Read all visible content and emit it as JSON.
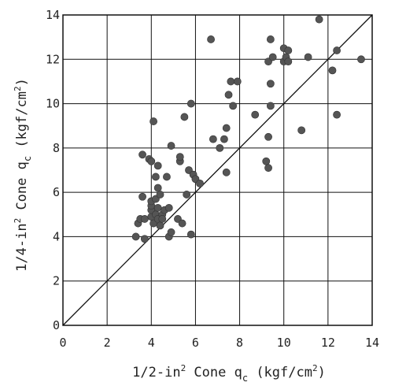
{
  "chart_data": {
    "type": "scatter",
    "title": "",
    "xlabel": {
      "prefix": "1/2-in",
      "sup1": "2",
      "mid": " Cone q",
      "sub": "c",
      "unit_open": " (kgf/cm",
      "sup2": "2",
      "unit_close": ")"
    },
    "ylabel": {
      "prefix": "1/4-in",
      "sup1": "2",
      "mid": " Cone q",
      "sub": "c",
      "unit_open": " (kgf/cm",
      "sup2": "2",
      "unit_close": ")"
    },
    "xlim": [
      0,
      14
    ],
    "ylim": [
      0,
      14
    ],
    "xticks": [
      0,
      2,
      4,
      6,
      8,
      10,
      12,
      14
    ],
    "yticks": [
      0,
      2,
      4,
      6,
      8,
      10,
      12,
      14
    ],
    "grid": true,
    "reference_line": {
      "x": [
        0,
        14
      ],
      "y": [
        0,
        14
      ]
    },
    "marker_color": "#555555",
    "points": [
      [
        3.3,
        4.0
      ],
      [
        3.4,
        4.6
      ],
      [
        3.5,
        4.8
      ],
      [
        3.6,
        5.8
      ],
      [
        3.6,
        7.7
      ],
      [
        3.7,
        3.9
      ],
      [
        3.7,
        4.8
      ],
      [
        3.9,
        7.5
      ],
      [
        4.0,
        4.9
      ],
      [
        4.0,
        5.2
      ],
      [
        4.0,
        5.4
      ],
      [
        4.0,
        5.6
      ],
      [
        4.0,
        7.4
      ],
      [
        4.1,
        9.2
      ],
      [
        4.1,
        4.6
      ],
      [
        4.2,
        5.0
      ],
      [
        4.2,
        5.7
      ],
      [
        4.2,
        6.7
      ],
      [
        4.3,
        5.3
      ],
      [
        4.3,
        4.8
      ],
      [
        4.3,
        7.2
      ],
      [
        4.3,
        6.2
      ],
      [
        4.4,
        5.9
      ],
      [
        4.4,
        4.5
      ],
      [
        4.5,
        5.0
      ],
      [
        4.5,
        4.8
      ],
      [
        4.6,
        5.2
      ],
      [
        4.7,
        6.7
      ],
      [
        4.8,
        4.0
      ],
      [
        4.8,
        5.3
      ],
      [
        4.9,
        4.2
      ],
      [
        4.9,
        8.1
      ],
      [
        5.2,
        4.8
      ],
      [
        5.3,
        7.4
      ],
      [
        5.3,
        7.6
      ],
      [
        5.4,
        4.6
      ],
      [
        5.5,
        9.4
      ],
      [
        5.6,
        5.9
      ],
      [
        5.7,
        7.0
      ],
      [
        5.8,
        4.1
      ],
      [
        5.8,
        10.0
      ],
      [
        5.9,
        6.8
      ],
      [
        6.0,
        6.6
      ],
      [
        6.2,
        6.4
      ],
      [
        6.7,
        12.9
      ],
      [
        6.8,
        8.4
      ],
      [
        7.1,
        8.0
      ],
      [
        7.3,
        8.4
      ],
      [
        7.4,
        6.9
      ],
      [
        7.4,
        8.9
      ],
      [
        7.5,
        10.4
      ],
      [
        7.6,
        11.0
      ],
      [
        7.7,
        9.9
      ],
      [
        7.9,
        11.0
      ],
      [
        8.7,
        9.5
      ],
      [
        9.2,
        7.4
      ],
      [
        9.3,
        7.1
      ],
      [
        9.3,
        8.5
      ],
      [
        9.3,
        11.9
      ],
      [
        9.4,
        10.9
      ],
      [
        9.4,
        9.9
      ],
      [
        9.4,
        12.9
      ],
      [
        9.5,
        12.1
      ],
      [
        10.0,
        12.5
      ],
      [
        10.0,
        11.9
      ],
      [
        10.1,
        12.1
      ],
      [
        10.2,
        12.4
      ],
      [
        10.2,
        11.9
      ],
      [
        10.8,
        8.8
      ],
      [
        11.1,
        12.1
      ],
      [
        11.6,
        13.8
      ],
      [
        12.2,
        11.5
      ],
      [
        12.4,
        9.5
      ],
      [
        12.4,
        12.4
      ],
      [
        13.5,
        12.0
      ]
    ]
  }
}
